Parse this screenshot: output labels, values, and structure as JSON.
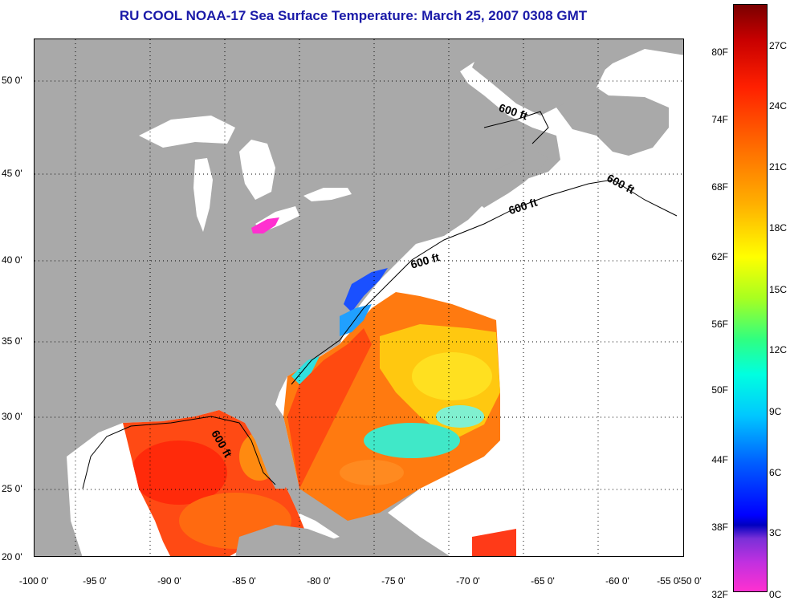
{
  "title": "RU COOL  NOAA-17  Sea Surface Temperature:  March 25, 2007 0308 GMT",
  "map": {
    "lat_labels": [
      "50 0'",
      "45 0'",
      "40 0'",
      "35 0'",
      "30 0'",
      "25 0'",
      "20 0'"
    ],
    "lon_labels": [
      "-100 0'",
      "-95 0'",
      "-90 0'",
      "-85 0'",
      "-80 0'",
      "-75 0'",
      "-70 0'",
      "-65 0'",
      "-60 0'",
      "-55 0'",
      "-50 0'"
    ],
    "isobath_labels": [
      "600 ft",
      "600 ft",
      "600 ft",
      "600 ft",
      "600 ft"
    ],
    "colors": {
      "land": "#a9a9a9",
      "no_data": "#ffffff",
      "warm": "#ff3a10",
      "mid": "#ffcc10",
      "cool": "#30e8c0",
      "cold": "#1040ff",
      "freezing": "#ff30d0"
    }
  },
  "colorbar": {
    "fahrenheit_labels": [
      "80F",
      "74F",
      "68F",
      "62F",
      "56F",
      "50F",
      "44F",
      "38F",
      "32F"
    ],
    "celsius_labels": [
      "27C",
      "24C",
      "21C",
      "18C",
      "15C",
      "12C",
      "9C",
      "6C",
      "3C",
      "0C"
    ]
  }
}
